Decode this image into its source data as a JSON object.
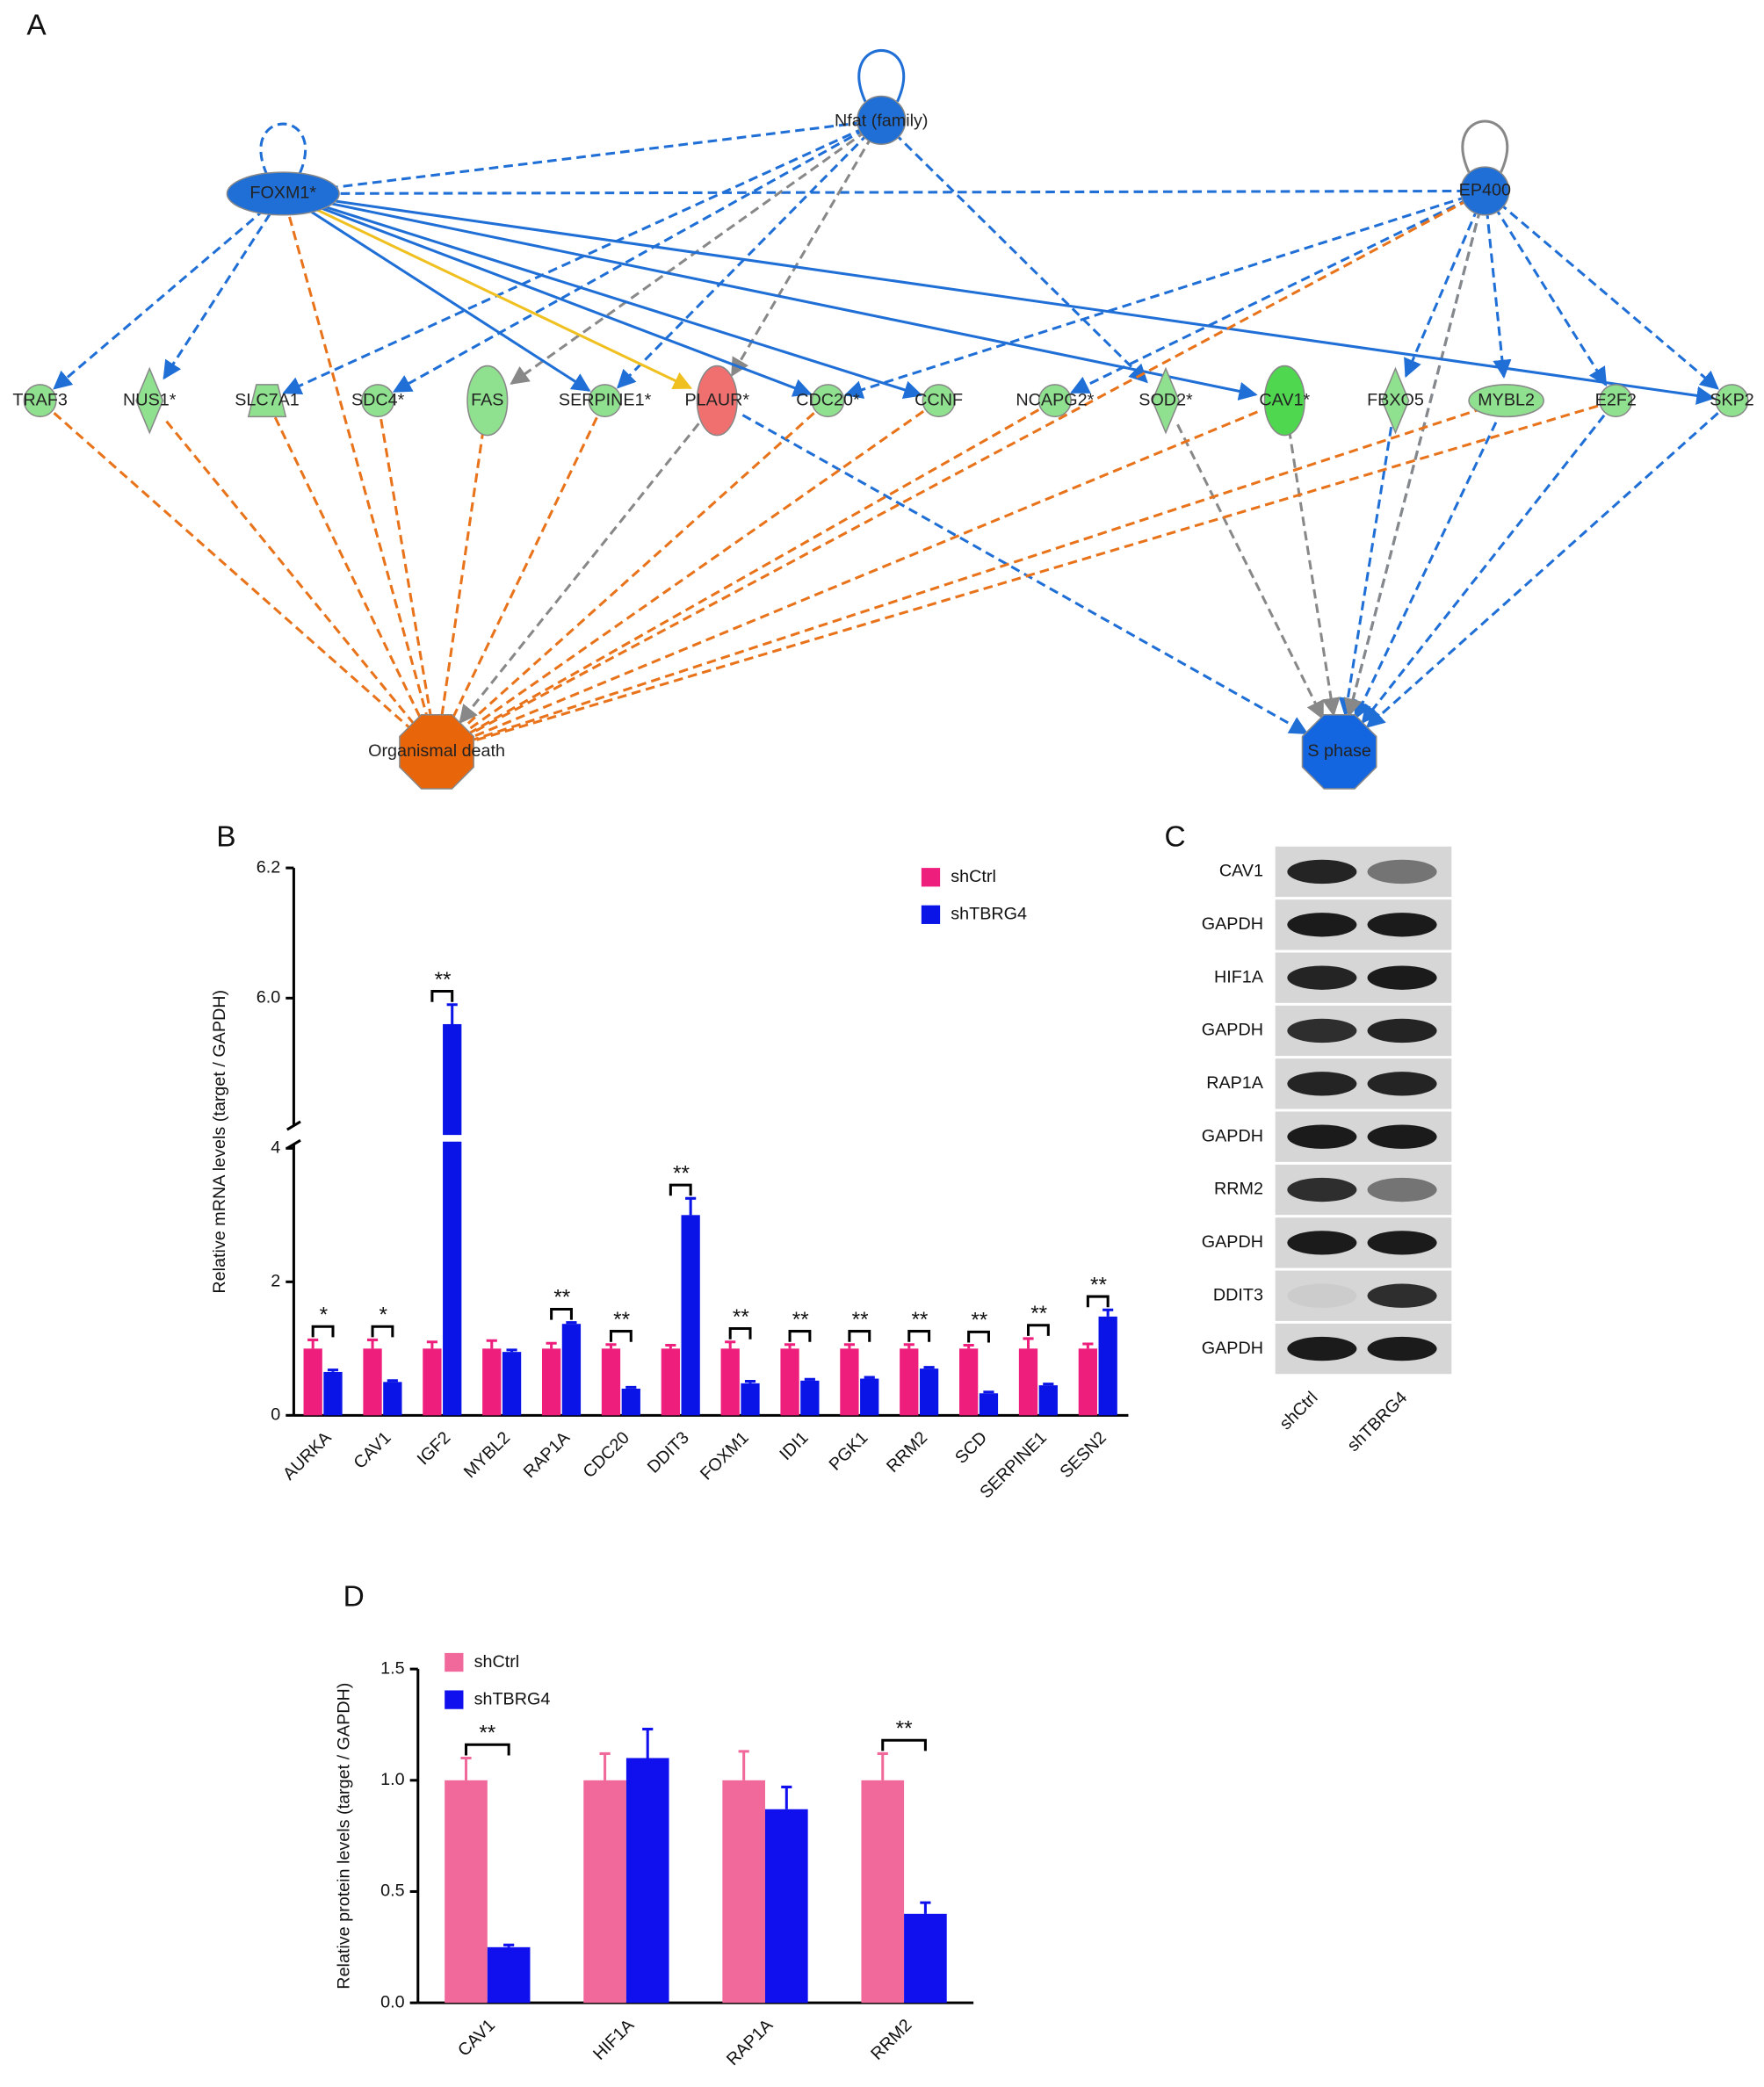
{
  "panel_labels": [
    "A",
    "B",
    "C",
    "D"
  ],
  "network": {
    "nodes": [
      "FOXM1*",
      "Nfat (family)",
      "EP400",
      "TRAF3",
      "NUS1*",
      "SLC7A1",
      "SDC4*",
      "FAS",
      "SERPINE1*",
      "PLAUR*",
      "CDC20*",
      "CCNF",
      "NCAPG2*",
      "SOD2*",
      "CAV1*",
      "FBXO5",
      "MYBL2",
      "E2F2",
      "SKP2",
      "Organismal death",
      "S phase"
    ]
  },
  "blot": {
    "rows": [
      "CAV1",
      "GAPDH",
      "HIF1A",
      "GAPDH",
      "RAP1A",
      "GAPDH",
      "RRM2",
      "GAPDH",
      "DDIT3",
      "GAPDH"
    ],
    "columns": [
      "shCtrl",
      "shTBRG4"
    ]
  },
  "chart_data": [
    {
      "type": "bar",
      "ylabel": "Relative mRNA levels (target / GAPDH)",
      "categories": [
        "AURKA",
        "CAV1",
        "IGF2",
        "MYBL2",
        "RAP1A",
        "CDC20",
        "DDIT3",
        "FOXM1",
        "IDI1",
        "PGK1",
        "RRM2",
        "SCD",
        "SERPINE1",
        "SESN2"
      ],
      "series": [
        {
          "name": "shCtrl",
          "color": "#ee1e7d",
          "values": [
            1.0,
            1.0,
            1.0,
            1.0,
            1.0,
            1.0,
            1.0,
            1.0,
            1.0,
            1.0,
            1.0,
            1.0,
            1.0,
            1.0
          ],
          "errors": [
            0.13,
            0.13,
            0.1,
            0.12,
            0.08,
            0.06,
            0.05,
            0.1,
            0.06,
            0.06,
            0.06,
            0.05,
            0.15,
            0.07
          ]
        },
        {
          "name": "shTBRG4",
          "color": "#0a14e6",
          "values": [
            0.65,
            0.5,
            5.96,
            0.95,
            1.37,
            0.4,
            3.0,
            0.48,
            0.52,
            0.55,
            0.7,
            0.33,
            0.45,
            1.48
          ],
          "errors": [
            0.03,
            0.02,
            0.03,
            0.03,
            0.02,
            0.02,
            0.25,
            0.03,
            0.02,
            0.02,
            0.02,
            0.02,
            0.02,
            0.1
          ]
        }
      ],
      "annotations": [
        "*",
        "*",
        "**",
        null,
        "**",
        "**",
        "**",
        "**",
        "**",
        "**",
        "**",
        "**",
        "**",
        "**"
      ],
      "ylim": [
        0,
        6.2
      ],
      "y_break": [
        4.2,
        5.8
      ],
      "yticks": [
        0,
        2,
        4,
        {
          "value": 6.0,
          "label": "6.0"
        },
        6.2
      ]
    },
    {
      "type": "bar",
      "ylabel": "Relative protein levels (target / GAPDH)",
      "categories": [
        "CAV1",
        "HIF1A",
        "RAP1A",
        "RRM2"
      ],
      "series": [
        {
          "name": "shCtrl",
          "color": "#f0699a",
          "values": [
            1.0,
            1.0,
            1.0,
            1.0
          ],
          "errors": [
            0.1,
            0.12,
            0.13,
            0.12
          ]
        },
        {
          "name": "shTBRG4",
          "color": "#1010ee",
          "values": [
            0.25,
            1.1,
            0.87,
            0.4
          ],
          "errors": [
            0.01,
            0.13,
            0.1,
            0.05
          ]
        }
      ],
      "annotations": [
        "**",
        null,
        null,
        "**"
      ],
      "ylim": [
        0,
        1.5
      ],
      "yticks": [
        {
          "value": 0,
          "label": "0.0"
        },
        0.5,
        {
          "value": 1,
          "label": "1.0"
        },
        1.5
      ]
    }
  ]
}
